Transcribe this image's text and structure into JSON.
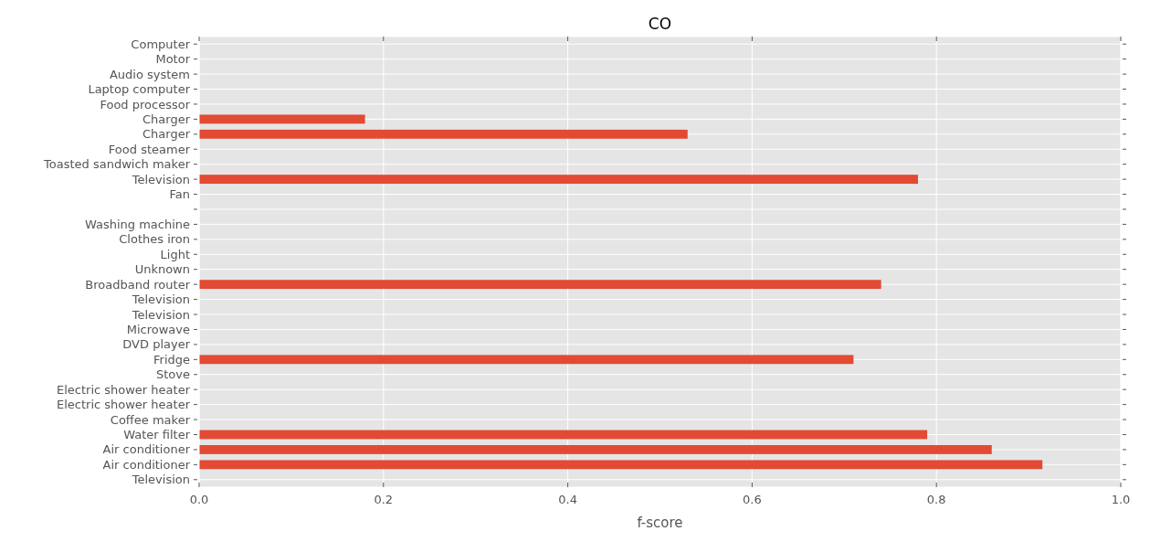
{
  "chart_data": {
    "type": "bar",
    "orientation": "horizontal",
    "title": "CO",
    "xlabel": "f-score",
    "categories": [
      "Computer",
      "Motor",
      "Audio system",
      "Laptop computer",
      "Food processor",
      "Charger",
      "Charger",
      "Food steamer",
      "Toasted sandwich maker",
      "Television",
      "Fan",
      null,
      "Washing machine",
      "Clothes iron",
      "Light",
      "Unknown",
      "Broadband router",
      "Television",
      "Television",
      "Microwave",
      "DVD player",
      "Fridge",
      "Stove",
      "Electric shower heater",
      "Electric shower heater",
      "Coffee maker",
      "Water filter",
      "Air conditioner",
      "Air conditioner",
      "Television"
    ],
    "values": [
      0,
      0,
      0,
      0,
      0,
      0.18,
      0.53,
      0,
      0,
      0.78,
      0,
      0,
      0,
      0,
      0,
      0,
      0.74,
      0,
      0,
      0,
      0,
      0.71,
      0,
      0,
      0,
      0,
      0.79,
      0.86,
      0.915,
      0
    ],
    "color": "#e24a33",
    "xlim": [
      0,
      1
    ],
    "xticks": [
      {
        "value": 0,
        "label": "0.0"
      },
      {
        "value": 0.2,
        "label": "0.2"
      },
      {
        "value": 0.4,
        "label": "0.4"
      },
      {
        "value": 0.6,
        "label": "0.6"
      },
      {
        "value": 0.8,
        "label": "0.8"
      },
      {
        "value": 1,
        "label": "1.0"
      }
    ],
    "grid": true
  }
}
